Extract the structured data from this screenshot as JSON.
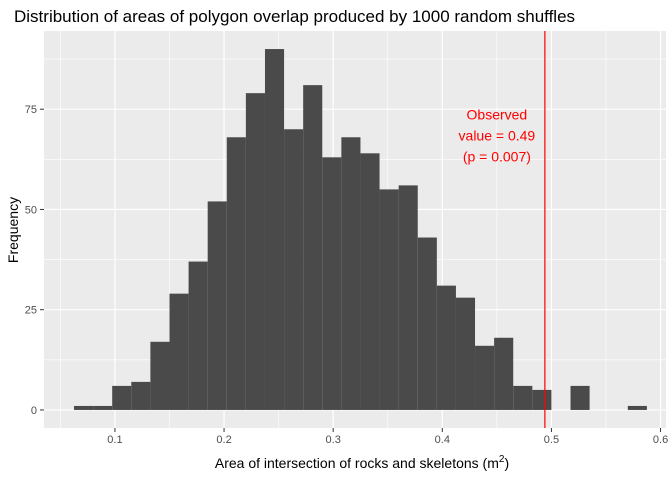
{
  "chart_data": {
    "type": "histogram",
    "title": "Distribution of areas of polygon overlap produced by 1000 random shuffles",
    "xlabel": "Area of intersection of rocks and skeletons (m",
    "xlabel_superscript": "2",
    "xlabel_suffix": ")",
    "ylabel": "Frequency",
    "xlim": [
      0.035,
      0.605
    ],
    "ylim": [
      -4.5,
      94.5
    ],
    "x_ticks": [
      0.1,
      0.2,
      0.3,
      0.4,
      0.5,
      0.6
    ],
    "x_tick_labels": [
      "0.1",
      "0.2",
      "0.3",
      "0.4",
      "0.5",
      "0.6"
    ],
    "y_ticks": [
      0,
      25,
      50,
      75
    ],
    "y_tick_labels": [
      "0",
      "25",
      "50",
      "75"
    ],
    "bin_width": 0.0175,
    "bins_start": 0.0625,
    "counts": [
      1,
      1,
      6,
      7,
      17,
      29,
      37,
      52,
      68,
      79,
      90,
      70,
      81,
      63,
      68,
      64,
      55,
      56,
      43,
      31,
      28,
      16,
      18,
      6,
      5,
      0,
      6,
      0,
      0,
      1
    ],
    "bar_color": "#4a4a4a",
    "panel_background": "#ebebeb",
    "grid": true,
    "vline": {
      "x": 0.494,
      "color": "#ff0000"
    },
    "annotation": {
      "lines": [
        "Observed",
        "value = 0.49",
        "(p = 0.007)"
      ],
      "x": 0.494,
      "y": 68,
      "color": "#ff0000"
    }
  }
}
